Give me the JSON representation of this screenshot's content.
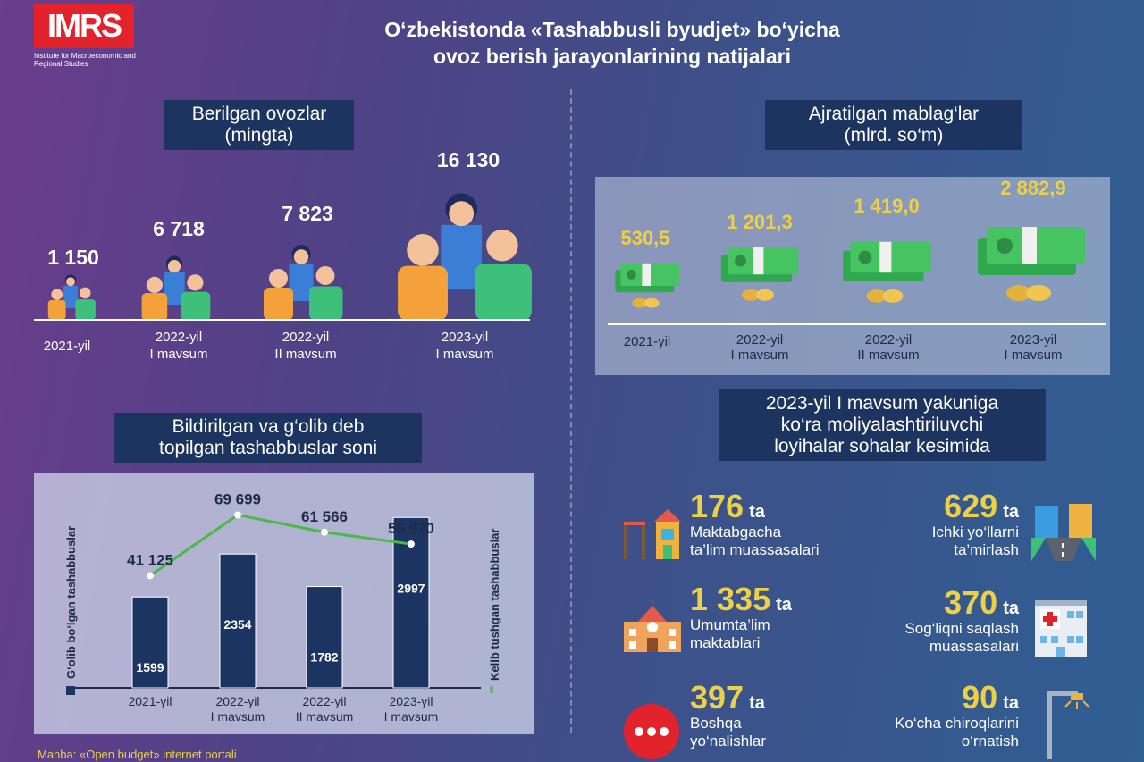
{
  "header": {
    "logo_text": "IMRS",
    "logo_subtitle": "Institute for Macroeconomic and Regional Studies",
    "title_line1": "O‘zbekistonda «Tashabbusli byudjet» bo‘yicha",
    "title_line2": "ovoz berish jarayonlarining natijalari"
  },
  "votes": {
    "title_line1": "Berilgan ovozlar",
    "title_line2": "(mingta)",
    "items": [
      {
        "value": "1 150",
        "year": "2021-yil",
        "season": ""
      },
      {
        "value": "6 718",
        "year": "2022-yil",
        "season": "I mavsum"
      },
      {
        "value": "7 823",
        "year": "2022-yil",
        "season": "II mavsum"
      },
      {
        "value": "16 130",
        "year": "2023-yil",
        "season": "I mavsum"
      }
    ]
  },
  "funds": {
    "title_line1": "Ajratilgan mablag‘lar",
    "title_line2": "(mlrd. so‘m)",
    "items": [
      {
        "value": "530,5",
        "year": "2021-yil",
        "season": ""
      },
      {
        "value": "1 201,3",
        "year": "2022-yil",
        "season": "I mavsum"
      },
      {
        "value": "1 419,0",
        "year": "2022-yil",
        "season": "II mavsum"
      },
      {
        "value": "2 882,9",
        "year": "2023-yil",
        "season": "I mavsum"
      }
    ]
  },
  "initiatives": {
    "title_line1": "Bildirilgan va g‘olib deb",
    "title_line2": "topilgan tashabbuslar soni"
  },
  "chart_data": {
    "type": "bar",
    "categories": [
      "2021-yil|",
      "2022-yil|I mavsum",
      "2022-yil|II mavsum",
      "2023-yil|I mavsum"
    ],
    "series": [
      {
        "name": "G‘olib bo‘lgan tashabbuslar",
        "type": "bar",
        "values": [
          1599,
          2354,
          1782,
          2997
        ],
        "labels": [
          "1599",
          "2354",
          "1782",
          "2997"
        ]
      },
      {
        "name": "Kelib tushgan tashabbuslar",
        "type": "line",
        "values": [
          41125,
          69699,
          61566,
          55970
        ],
        "labels": [
          "41 125",
          "69 699",
          "61 566",
          "55 970"
        ]
      }
    ],
    "colors": {
      "bar": "#1b3461",
      "line": "#4cb848"
    }
  },
  "sectors": {
    "title_line1": "2023-yil I mavsum yakuniga",
    "title_line2": "ko‘ra moliyalashtiriluvchi",
    "title_line3": "loyihalar sohalar kesimida",
    "unit": "ta",
    "items": [
      {
        "num": "176",
        "label1": "Maktabgacha",
        "label2": "ta’lim muassasalari",
        "icon": "playground-icon"
      },
      {
        "num": "629",
        "label1": "Ichki yo‘llarni",
        "label2": "ta’mirlash",
        "icon": "road-icon"
      },
      {
        "num": "1 335",
        "label1": "Umumta’lim",
        "label2": "maktablari",
        "icon": "school-icon"
      },
      {
        "num": "370",
        "label1": "Sog‘liqni saqlash",
        "label2": "muassasalari",
        "icon": "hospital-icon"
      },
      {
        "num": "397",
        "label1": "Boshqa",
        "label2": "yo‘nalishlar",
        "icon": "more-dots-icon"
      },
      {
        "num": "90",
        "label1": "Ko‘cha chiroqlarini",
        "label2": "o‘rnatish",
        "icon": "street-lamp-icon"
      }
    ]
  },
  "source": "Manba: «Open budget» internet portali"
}
